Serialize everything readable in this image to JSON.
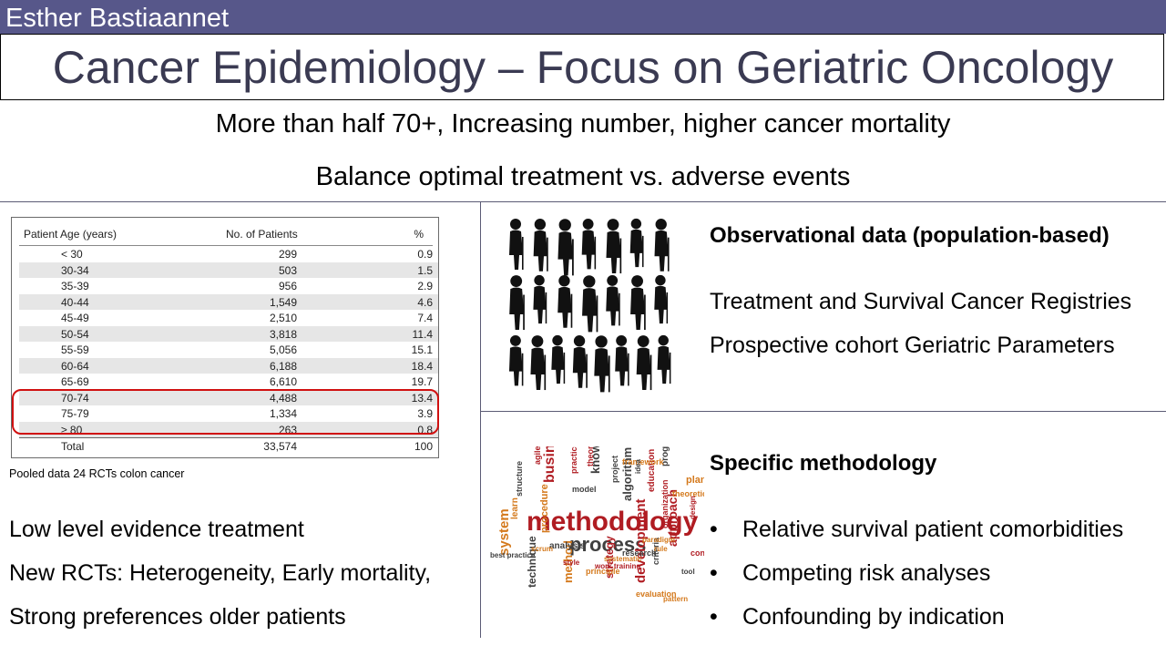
{
  "header": {
    "author": "Esther Bastiaannet",
    "title": "Cancer Epidemiology – Focus on Geriatric Oncology"
  },
  "subtitles": [
    "More than half 70+, Increasing number, higher cancer mortality",
    "Balance optimal treatment vs. adverse events"
  ],
  "table": {
    "headers": [
      "Patient Age (years)",
      "No. of Patients",
      "%"
    ],
    "rows": [
      [
        "< 30",
        "299",
        "0.9"
      ],
      [
        "30-34",
        "503",
        "1.5"
      ],
      [
        "35-39",
        "956",
        "2.9"
      ],
      [
        "40-44",
        "1,549",
        "4.6"
      ],
      [
        "45-49",
        "2,510",
        "7.4"
      ],
      [
        "50-54",
        "3,818",
        "11.4"
      ],
      [
        "55-59",
        "5,056",
        "15.1"
      ],
      [
        "60-64",
        "6,188",
        "18.4"
      ],
      [
        "65-69",
        "6,610",
        "19.7"
      ],
      [
        "70-74",
        "4,488",
        "13.4"
      ],
      [
        "75-79",
        "1,334",
        "3.9"
      ],
      [
        "≥ 80",
        "263",
        "0.8"
      ],
      [
        "Total",
        "33,574",
        "100"
      ]
    ],
    "caption": "Pooled data 24 RCTs colon cancer",
    "highlight_color": "#d01010"
  },
  "left_text": [
    "Low level evidence treatment",
    "New RCTs: Heterogeneity, Early mortality,",
    "Strong preferences older patients"
  ],
  "observational": {
    "heading": "Observational data (population-based)",
    "lines": [
      "Treatment and Survival Cancer Registries",
      "Prospective cohort Geriatric Parameters"
    ]
  },
  "methodology": {
    "heading": "Specific methodology",
    "bullets": [
      "Relative survival patient comorbidities",
      "Competing risk analyses",
      "Confounding by indication"
    ],
    "bullet_glyph": "•",
    "cloud_words": [
      "methodology",
      "process",
      "system",
      "business",
      "knowledge",
      "method",
      "development",
      "technique",
      "procedure",
      "approach",
      "algorithm",
      "plan",
      "education",
      "progress",
      "theoretical",
      "strategy",
      "analysis",
      "learn",
      "practice",
      "model",
      "principle",
      "concept",
      "research",
      "systematic",
      "work training",
      "best practice",
      "scrum",
      "theory",
      "criteria",
      "evaluation",
      "organization",
      "project",
      "paradigm",
      "design",
      "structure",
      "framework",
      "agile",
      "tool",
      "rule",
      "style",
      "idea",
      "pattern"
    ]
  },
  "colors": {
    "header_bar": "#57578a",
    "title_text": "#3a3a52",
    "table_row_alt": "#e6e6e6",
    "cloud_red": "#b01c22",
    "cloud_gray": "#404040",
    "cloud_orange": "#d4791c"
  },
  "icons": [
    "elderly-silhouettes-image",
    "methodology-word-cloud-image"
  ]
}
